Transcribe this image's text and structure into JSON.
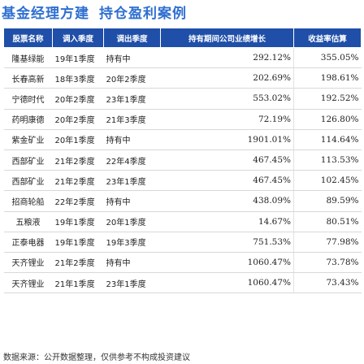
{
  "title": {
    "part1": "基金经理方建",
    "part2": "持仓盈利案例"
  },
  "table": {
    "headers": [
      "股票名称",
      "调入季度",
      "调出季度",
      "持有期间公司业绩增长",
      "收益率估算"
    ],
    "rows": [
      {
        "name": "隆基绿能",
        "in": "19年1季度",
        "out": "持有中",
        "growth": "292.12%",
        "ret": "355.05%"
      },
      {
        "name": "长春高新",
        "in": "18年3季度",
        "out": "20年2季度",
        "growth": "202.69%",
        "ret": "198.61%"
      },
      {
        "name": "宁德时代",
        "in": "20年2季度",
        "out": "23年1季度",
        "growth": "553.02%",
        "ret": "192.52%"
      },
      {
        "name": "药明康德",
        "in": "20年2季度",
        "out": "21年3季度",
        "growth": "72.19%",
        "ret": "126.80%"
      },
      {
        "name": "紫金矿业",
        "in": "20年1季度",
        "out": "持有中",
        "growth": "1901.01%",
        "ret": "114.64%"
      },
      {
        "name": "西部矿业",
        "in": "21年2季度",
        "out": "22年4季度",
        "growth": "467.45%",
        "ret": "113.53%"
      },
      {
        "name": "西部矿业",
        "in": "21年2季度",
        "out": "23年1季度",
        "growth": "467.45%",
        "ret": "102.45%"
      },
      {
        "name": "招商轮船",
        "in": "22年2季度",
        "out": "持有中",
        "growth": "438.09%",
        "ret": "89.59%"
      },
      {
        "name": "五粮液",
        "in": "19年1季度",
        "out": "20年1季度",
        "growth": "14.67%",
        "ret": "80.51%"
      },
      {
        "name": "正泰电器",
        "in": "19年1季度",
        "out": "19年3季度",
        "growth": "751.53%",
        "ret": "77.98%"
      },
      {
        "name": "天齐锂业",
        "in": "21年2季度",
        "out": "持有中",
        "growth": "1060.47%",
        "ret": "73.78%"
      },
      {
        "name": "天齐锂业",
        "in": "21年1季度",
        "out": "23年1季度",
        "growth": "1060.47%",
        "ret": "73.43%"
      }
    ]
  },
  "footer": "数据来源：公开数据整理，仅供参考不构成投资建议",
  "colors": {
    "header_bg": "#1f4fa8",
    "title": "#2f6fd1"
  }
}
